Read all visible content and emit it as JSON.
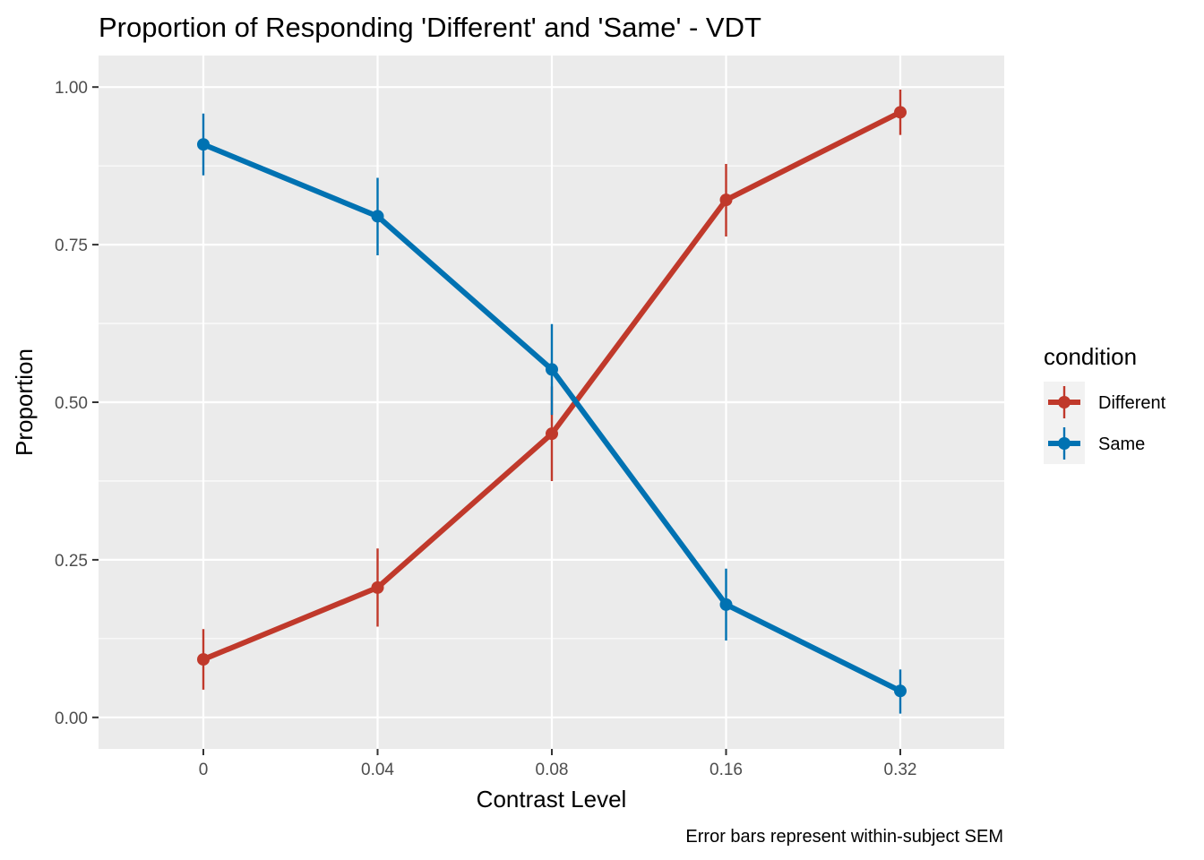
{
  "chart_data": {
    "type": "line",
    "title": "Proportion of Responding 'Different' and 'Same' - VDT",
    "xlabel": "Contrast Level",
    "ylabel": "Proportion",
    "caption": "Error bars represent within-subject SEM",
    "categories": [
      "0",
      "0.04",
      "0.08",
      "0.16",
      "0.32"
    ],
    "yticks": [
      "0.00",
      "0.25",
      "0.50",
      "0.75",
      "1.00"
    ],
    "ytick_values": [
      0,
      0.25,
      0.5,
      0.75,
      1.0
    ],
    "ylim": [
      -0.05,
      1.05
    ],
    "grid": true,
    "legend": {
      "title": "condition",
      "position": "right"
    },
    "series": [
      {
        "name": "Different",
        "color": "#C0392B",
        "values": [
          0.092,
          0.206,
          0.45,
          0.821,
          0.96
        ],
        "error_low": [
          0.044,
          0.144,
          0.375,
          0.763,
          0.924
        ],
        "error_high": [
          0.14,
          0.268,
          0.525,
          0.878,
          0.996
        ]
      },
      {
        "name": "Same",
        "color": "#0072B2",
        "values": [
          0.909,
          0.795,
          0.552,
          0.179,
          0.042
        ],
        "error_low": [
          0.86,
          0.733,
          0.48,
          0.122,
          0.006
        ],
        "error_high": [
          0.958,
          0.856,
          0.624,
          0.236,
          0.076
        ]
      }
    ]
  }
}
